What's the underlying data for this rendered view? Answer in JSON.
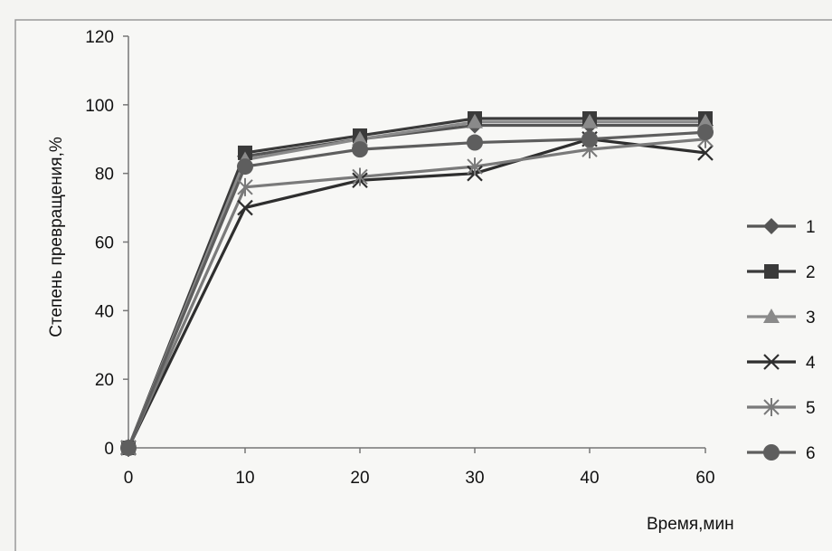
{
  "chart_data": {
    "type": "line",
    "x": [
      0,
      10,
      20,
      30,
      40,
      60
    ],
    "x_tick_labels": [
      "0",
      "10",
      "20",
      "30",
      "40",
      "60"
    ],
    "y_ticks": [
      0,
      20,
      40,
      60,
      80,
      100,
      120
    ],
    "ylim": [
      0,
      120
    ],
    "xlabel": "Время,мин",
    "ylabel": "Степень превращения,%",
    "grid": false,
    "legend_position": "right",
    "series": [
      {
        "name": "1",
        "marker": "diamond",
        "color": "#555555",
        "values": [
          0,
          85,
          90,
          94,
          94,
          94
        ]
      },
      {
        "name": "2",
        "marker": "square",
        "color": "#3a3a3a",
        "values": [
          0,
          86,
          91,
          96,
          96,
          96
        ]
      },
      {
        "name": "3",
        "marker": "triangle",
        "color": "#8a8a8a",
        "values": [
          0,
          84,
          90,
          95,
          95,
          95
        ]
      },
      {
        "name": "4",
        "marker": "x",
        "color": "#2e2e2e",
        "values": [
          0,
          70,
          78,
          80,
          90,
          86
        ]
      },
      {
        "name": "5",
        "marker": "star",
        "color": "#7a7a7a",
        "values": [
          0,
          76,
          79,
          82,
          87,
          90
        ]
      },
      {
        "name": "6",
        "marker": "circle",
        "color": "#5e5e5e",
        "values": [
          0,
          82,
          87,
          89,
          90,
          92
        ]
      }
    ]
  }
}
